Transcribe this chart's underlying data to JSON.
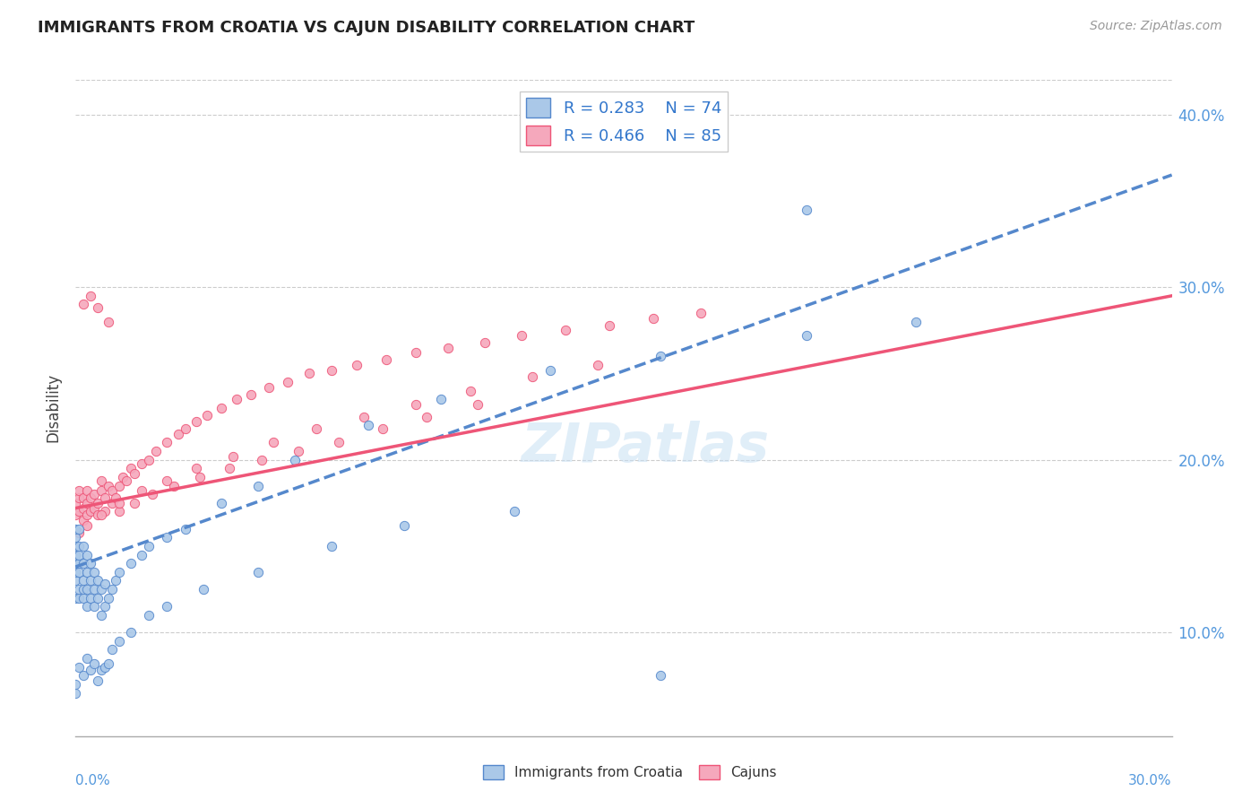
{
  "title": "IMMIGRANTS FROM CROATIA VS CAJUN DISABILITY CORRELATION CHART",
  "source": "Source: ZipAtlas.com",
  "ylabel": "Disability",
  "xmin": 0.0,
  "xmax": 0.3,
  "ymin": 0.04,
  "ymax": 0.42,
  "yticks": [
    0.1,
    0.2,
    0.3,
    0.4
  ],
  "ytick_labels": [
    "10.0%",
    "20.0%",
    "30.0%",
    "40.0%"
  ],
  "legend_r1": "0.283",
  "legend_n1": "74",
  "legend_r2": "0.466",
  "legend_n2": "85",
  "color_croatia": "#aac8e8",
  "color_cajun": "#f5a8bc",
  "color_line_croatia": "#5588cc",
  "color_line_cajun": "#ee5577",
  "watermark": "ZIPatlas",
  "croatia_scatter_x": [
    0.0,
    0.0,
    0.0,
    0.0,
    0.0,
    0.0,
    0.0,
    0.0,
    0.001,
    0.001,
    0.001,
    0.001,
    0.001,
    0.001,
    0.001,
    0.002,
    0.002,
    0.002,
    0.002,
    0.002,
    0.003,
    0.003,
    0.003,
    0.003,
    0.004,
    0.004,
    0.004,
    0.005,
    0.005,
    0.005,
    0.006,
    0.006,
    0.007,
    0.007,
    0.008,
    0.008,
    0.009,
    0.01,
    0.011,
    0.012,
    0.015,
    0.018,
    0.02,
    0.025,
    0.03,
    0.04,
    0.05,
    0.06,
    0.08,
    0.1,
    0.13,
    0.16,
    0.2,
    0.23,
    0.0,
    0.0,
    0.001,
    0.002,
    0.003,
    0.004,
    0.005,
    0.006,
    0.007,
    0.008,
    0.009,
    0.01,
    0.012,
    0.015,
    0.02,
    0.025,
    0.035,
    0.05,
    0.07,
    0.09,
    0.12,
    0.16,
    0.2
  ],
  "croatia_scatter_y": [
    0.12,
    0.13,
    0.135,
    0.14,
    0.145,
    0.15,
    0.155,
    0.16,
    0.12,
    0.125,
    0.135,
    0.14,
    0.145,
    0.15,
    0.16,
    0.12,
    0.125,
    0.13,
    0.14,
    0.15,
    0.115,
    0.125,
    0.135,
    0.145,
    0.12,
    0.13,
    0.14,
    0.115,
    0.125,
    0.135,
    0.12,
    0.13,
    0.11,
    0.125,
    0.115,
    0.128,
    0.12,
    0.125,
    0.13,
    0.135,
    0.14,
    0.145,
    0.15,
    0.155,
    0.16,
    0.175,
    0.185,
    0.2,
    0.22,
    0.235,
    0.252,
    0.26,
    0.272,
    0.28,
    0.065,
    0.07,
    0.08,
    0.075,
    0.085,
    0.078,
    0.082,
    0.072,
    0.078,
    0.08,
    0.082,
    0.09,
    0.095,
    0.1,
    0.11,
    0.115,
    0.125,
    0.135,
    0.15,
    0.162,
    0.17,
    0.075,
    0.345
  ],
  "cajun_scatter_x": [
    0.0,
    0.0,
    0.001,
    0.001,
    0.001,
    0.002,
    0.002,
    0.002,
    0.003,
    0.003,
    0.003,
    0.004,
    0.004,
    0.005,
    0.005,
    0.006,
    0.006,
    0.007,
    0.007,
    0.008,
    0.008,
    0.009,
    0.01,
    0.01,
    0.011,
    0.012,
    0.013,
    0.014,
    0.015,
    0.016,
    0.018,
    0.02,
    0.022,
    0.025,
    0.028,
    0.03,
    0.033,
    0.036,
    0.04,
    0.044,
    0.048,
    0.053,
    0.058,
    0.064,
    0.07,
    0.077,
    0.085,
    0.093,
    0.102,
    0.112,
    0.122,
    0.134,
    0.146,
    0.158,
    0.171,
    0.002,
    0.004,
    0.006,
    0.009,
    0.012,
    0.016,
    0.021,
    0.027,
    0.034,
    0.042,
    0.051,
    0.061,
    0.072,
    0.084,
    0.096,
    0.11,
    0.001,
    0.003,
    0.007,
    0.012,
    0.018,
    0.025,
    0.033,
    0.043,
    0.054,
    0.066,
    0.079,
    0.093,
    0.108,
    0.125,
    0.143
  ],
  "cajun_scatter_y": [
    0.175,
    0.168,
    0.17,
    0.178,
    0.182,
    0.165,
    0.172,
    0.178,
    0.168,
    0.175,
    0.182,
    0.17,
    0.178,
    0.172,
    0.18,
    0.168,
    0.175,
    0.182,
    0.188,
    0.17,
    0.178,
    0.185,
    0.175,
    0.182,
    0.178,
    0.185,
    0.19,
    0.188,
    0.195,
    0.192,
    0.198,
    0.2,
    0.205,
    0.21,
    0.215,
    0.218,
    0.222,
    0.226,
    0.23,
    0.235,
    0.238,
    0.242,
    0.245,
    0.25,
    0.252,
    0.255,
    0.258,
    0.262,
    0.265,
    0.268,
    0.272,
    0.275,
    0.278,
    0.282,
    0.285,
    0.29,
    0.295,
    0.288,
    0.28,
    0.17,
    0.175,
    0.18,
    0.185,
    0.19,
    0.195,
    0.2,
    0.205,
    0.21,
    0.218,
    0.225,
    0.232,
    0.158,
    0.162,
    0.168,
    0.175,
    0.182,
    0.188,
    0.195,
    0.202,
    0.21,
    0.218,
    0.225,
    0.232,
    0.24,
    0.248,
    0.255
  ],
  "line_croatia_x0": 0.0,
  "line_croatia_y0": 0.138,
  "line_croatia_x1": 0.3,
  "line_croatia_y1": 0.365,
  "line_cajun_x0": 0.0,
  "line_cajun_y0": 0.172,
  "line_cajun_x1": 0.3,
  "line_cajun_y1": 0.295
}
